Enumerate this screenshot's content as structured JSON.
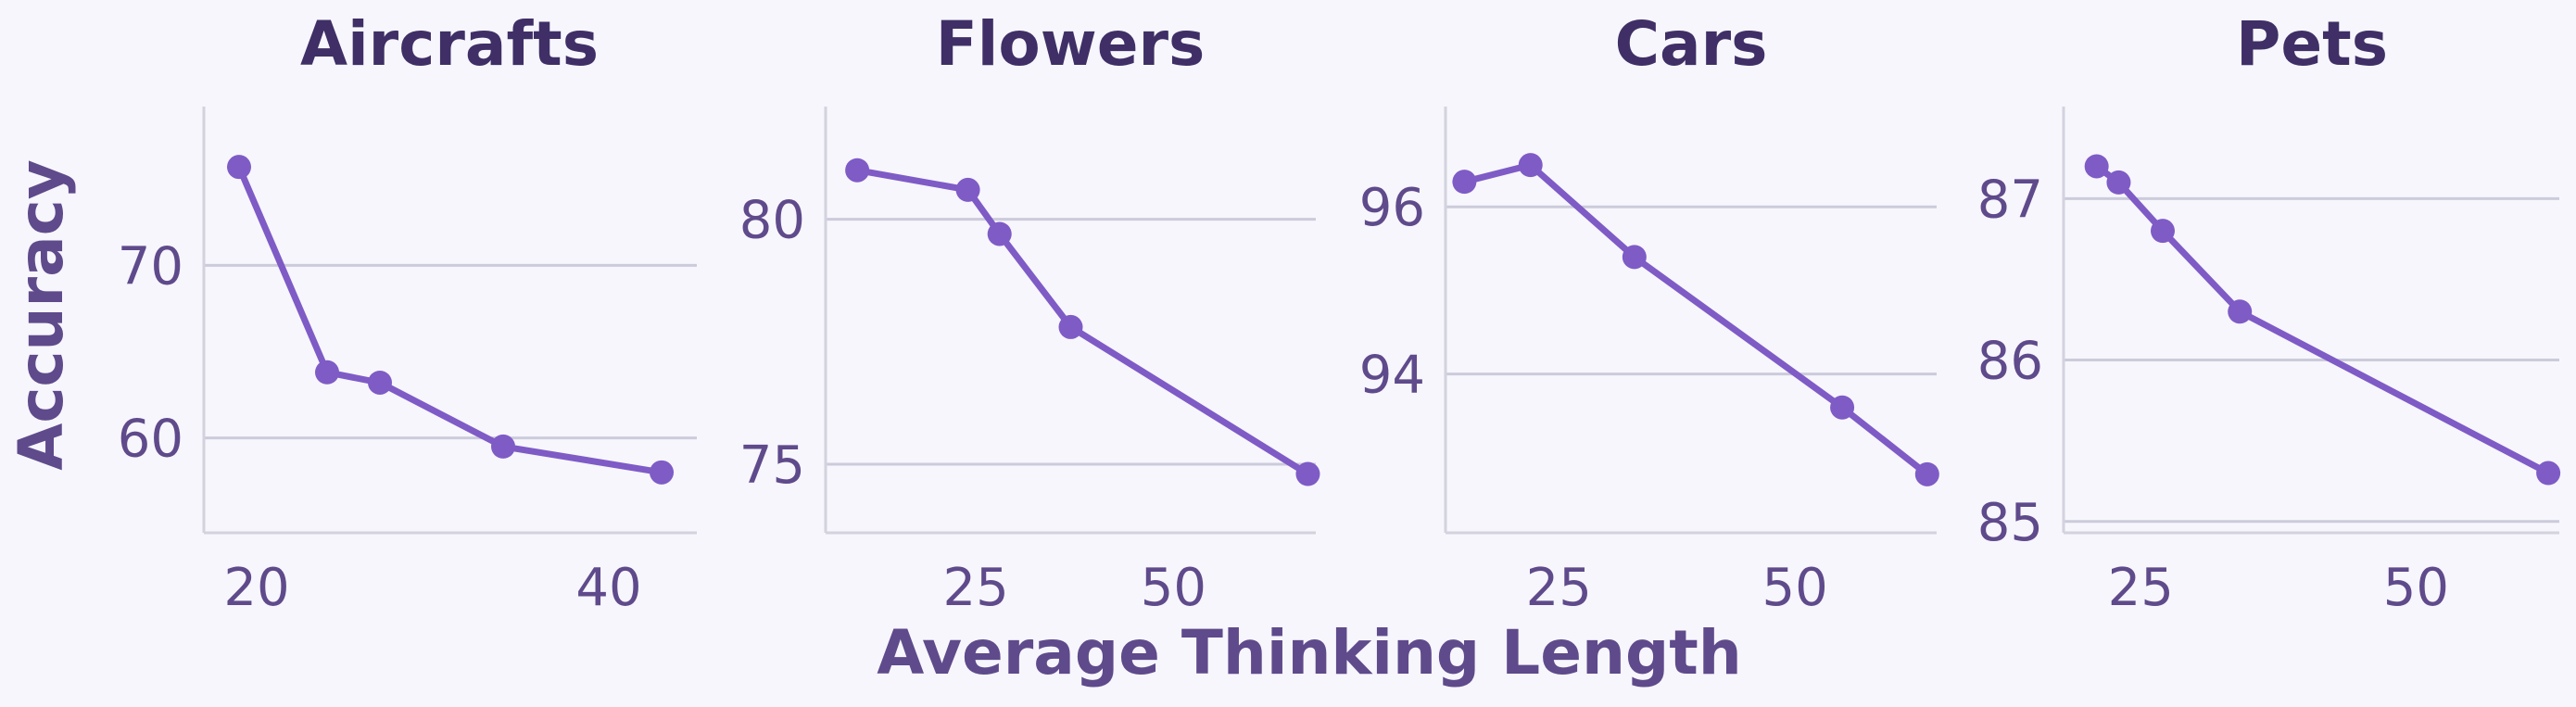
{
  "chart_data": [
    {
      "type": "line",
      "title": "Aircrafts",
      "x": [
        19,
        24,
        27,
        34,
        43
      ],
      "y": [
        75.7,
        63.8,
        63.2,
        59.5,
        58.0
      ],
      "xlim": [
        17,
        45
      ],
      "ylim": [
        54.5,
        79.2
      ],
      "xticks": [
        20,
        40
      ],
      "yticks": [
        60,
        70
      ],
      "grid": "y"
    },
    {
      "type": "line",
      "title": "Flowers",
      "x": [
        10,
        24,
        28,
        37,
        67
      ],
      "y": [
        81.0,
        80.6,
        79.7,
        77.8,
        74.8
      ],
      "xlim": [
        6,
        68
      ],
      "ylim": [
        73.6,
        82.3
      ],
      "xticks": [
        25,
        50
      ],
      "yticks": [
        75,
        80
      ],
      "grid": "y"
    },
    {
      "type": "line",
      "title": "Cars",
      "x": [
        15,
        22,
        33,
        55,
        64
      ],
      "y": [
        96.3,
        96.5,
        95.4,
        93.6,
        92.8
      ],
      "xlim": [
        13,
        65
      ],
      "ylim": [
        92.1,
        97.2
      ],
      "xticks": [
        25,
        50
      ],
      "yticks": [
        94,
        96
      ],
      "grid": "y"
    },
    {
      "type": "line",
      "title": "Pets",
      "x": [
        21,
        23,
        27,
        34,
        62
      ],
      "y": [
        87.2,
        87.1,
        86.8,
        86.3,
        85.3
      ],
      "xlim": [
        18,
        63
      ],
      "ylim": [
        84.93,
        87.57
      ],
      "xticks": [
        25,
        50
      ],
      "yticks": [
        85,
        86,
        87
      ],
      "grid": "y"
    }
  ],
  "axes": {
    "xlabel": "Average Thinking Length",
    "ylabel": "Accuracy"
  },
  "colors": {
    "background": "#f6f6fc",
    "line": "#7f5bc6",
    "title": "#3f2f66",
    "tick_text": "#5f4a8b",
    "grid": "#cccbdb",
    "spine": "#d3d2de"
  }
}
